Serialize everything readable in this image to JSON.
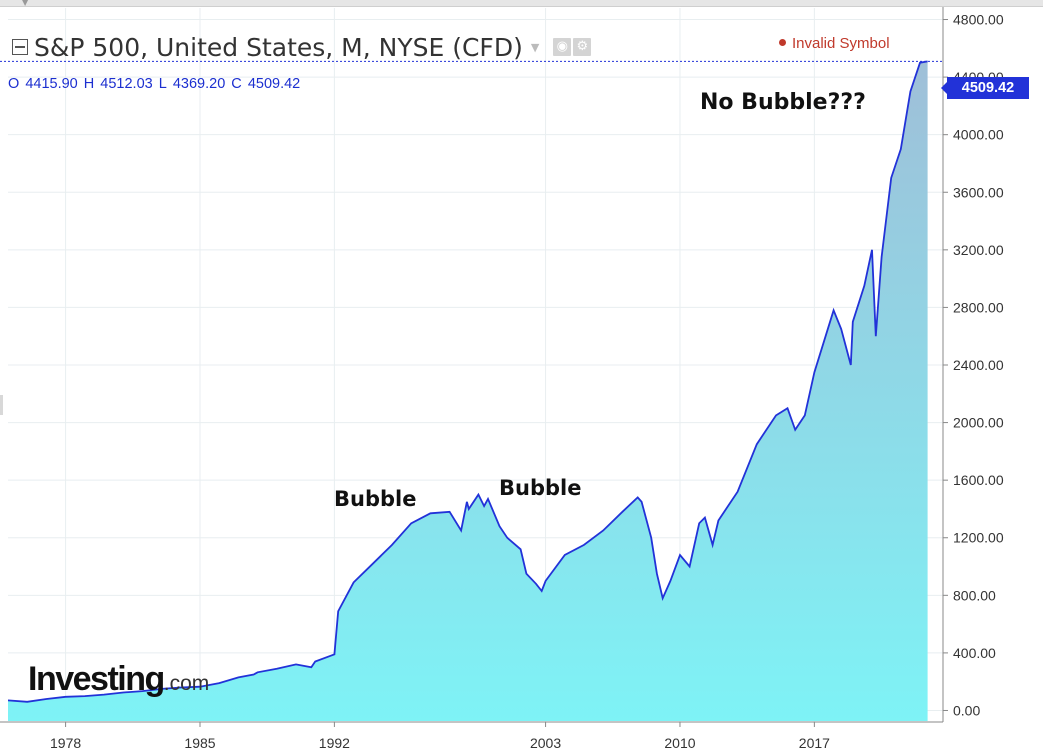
{
  "header": {
    "title": "S&P 500, United States, M, NYSE (CFD)",
    "status": "Invalid Symbol",
    "ohlc": {
      "open_label": "O",
      "open": "4415.90",
      "high_label": "H",
      "high": "4512.03",
      "low_label": "L",
      "low": "4369.20",
      "close_label": "C",
      "close": "4509.42"
    }
  },
  "last_price": "4509.42",
  "logo": {
    "main": "Investing",
    "sub": ".com"
  },
  "colors": {
    "line": "#2232d8",
    "fill_top": "#9fbfd8",
    "fill_bottom": "#7ef3f6",
    "grid": "#e8eef0",
    "status": "#c0392b"
  },
  "icons": [
    "collapse-icon",
    "caret-down-icon",
    "visibility-icon",
    "settings-icon",
    "status-dot-icon"
  ],
  "chart_data": {
    "type": "area",
    "title": "S&P 500, United States, M, NYSE (CFD)",
    "xlabel": "",
    "ylabel": "",
    "xlim": [
      1975,
      2023.7
    ],
    "ylim": [
      -80,
      4880
    ],
    "x_ticks": [
      1978,
      1985,
      1992,
      2003,
      2010,
      2017
    ],
    "x_tick_labels": [
      "1978",
      "1985",
      "1992",
      "2003",
      "2010",
      "2017"
    ],
    "y_ticks": [
      0,
      400,
      800,
      1200,
      1600,
      2000,
      2400,
      2800,
      3200,
      3600,
      4000,
      4400,
      4800
    ],
    "y_tick_labels": [
      "0.00",
      "400.00",
      "800.00",
      "1200.00",
      "1600.00",
      "2000.00",
      "2400.00",
      "2800.00",
      "3200.00",
      "3600.00",
      "4000.00",
      "4400.00",
      "4800.00"
    ],
    "series": [
      {
        "name": "S&P 500",
        "x": [
          1975,
          1976,
          1977,
          1978,
          1979,
          1980,
          1981,
          1982,
          1983,
          1984,
          1985,
          1986,
          1987,
          1987.8,
          1988,
          1989,
          1990,
          1990.8,
          1991,
          1991.8,
          1992,
          1992.2,
          1993,
          1994,
          1995,
          1996,
          1997,
          1998,
          1998.6,
          1998.9,
          1999,
          1999.5,
          1999.8,
          2000,
          2000.6,
          2001,
          2001.7,
          2002,
          2002.5,
          2002.8,
          2003,
          2004,
          2005,
          2006,
          2007,
          2007.8,
          2008,
          2008.5,
          2008.8,
          2009.1,
          2009.5,
          2010,
          2010.5,
          2011,
          2011.3,
          2011.7,
          2012,
          2013,
          2014,
          2015,
          2015.6,
          2016,
          2016.5,
          2017,
          2018,
          2018.4,
          2018.9,
          2019,
          2019.6,
          2020,
          2020.2,
          2020.5,
          2021,
          2021.5,
          2022,
          2022.5,
          2022.9
        ],
        "values": [
          70,
          60,
          80,
          95,
          100,
          110,
          125,
          135,
          150,
          160,
          165,
          190,
          230,
          250,
          265,
          290,
          320,
          300,
          340,
          380,
          390,
          690,
          890,
          1020,
          1150,
          1300,
          1370,
          1380,
          1250,
          1450,
          1400,
          1500,
          1420,
          1470,
          1280,
          1200,
          1120,
          950,
          880,
          830,
          900,
          1080,
          1150,
          1250,
          1380,
          1480,
          1450,
          1200,
          950,
          780,
          900,
          1080,
          1000,
          1300,
          1340,
          1150,
          1320,
          1520,
          1850,
          2050,
          2100,
          1950,
          2050,
          2350,
          2780,
          2650,
          2400,
          2700,
          2950,
          3200,
          2600,
          3150,
          3700,
          3900,
          4300,
          4500,
          4509
        ]
      }
    ],
    "annotations": [
      {
        "label": "Bubble",
        "x": 1996.5,
        "y": 1450
      },
      {
        "label": "Bubble",
        "x": 2006.2,
        "y": 1530
      },
      {
        "label": "No Bubble???",
        "x": 2018.4,
        "y": 4450
      }
    ],
    "last_value": 4509.42
  }
}
